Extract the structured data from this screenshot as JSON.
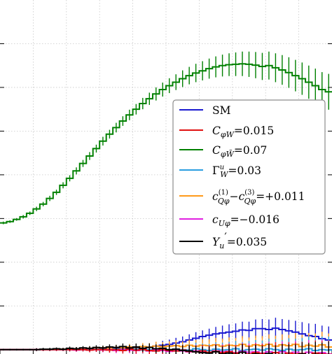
{
  "chart_data": {
    "type": "line",
    "step": true,
    "title": "",
    "xlabel": "",
    "ylabel": "",
    "xlim": [
      0,
      50
    ],
    "ylim": [
      0.9,
      9.0
    ],
    "x_grid": [
      0,
      5,
      10,
      15,
      20,
      25,
      30,
      35,
      40,
      45,
      50
    ],
    "y_grid": [
      1,
      2,
      3,
      4,
      5,
      6,
      7,
      8
    ],
    "grid": true,
    "legend_position": "center-right",
    "x": [
      0.5,
      1.5,
      2.5,
      3.5,
      4.5,
      5.5,
      6.5,
      7.5,
      8.5,
      9.5,
      10.5,
      11.5,
      12.5,
      13.5,
      14.5,
      15.5,
      16.5,
      17.5,
      18.5,
      19.5,
      20.5,
      21.5,
      22.5,
      23.5,
      24.5,
      25.5,
      26.5,
      27.5,
      28.5,
      29.5,
      30.5,
      31.5,
      32.5,
      33.5,
      34.5,
      35.5,
      36.5,
      37.5,
      38.5,
      39.5,
      40.5,
      41.5,
      42.5,
      43.5,
      44.5,
      45.5,
      46.5,
      47.5,
      48.5,
      49.5
    ],
    "series": [
      {
        "name": "SM",
        "color": "#1a1ad0",
        "values": [
          1.0,
          1.0,
          1.0,
          1.0,
          1.0,
          1.0,
          1.0,
          1.0,
          1.0,
          1.0,
          1.0,
          1.0,
          1.0,
          1.01,
          1.0,
          1.01,
          1.0,
          1.02,
          1.01,
          1.02,
          1.04,
          1.03,
          1.06,
          1.08,
          1.1,
          1.12,
          1.15,
          1.18,
          1.22,
          1.26,
          1.3,
          1.33,
          1.36,
          1.38,
          1.4,
          1.42,
          1.45,
          1.44,
          1.48,
          1.48,
          1.46,
          1.49,
          1.46,
          1.43,
          1.4,
          1.36,
          1.32,
          1.3,
          1.25,
          1.22
        ],
        "errors": [
          0.02,
          0.02,
          0.02,
          0.02,
          0.02,
          0.03,
          0.03,
          0.03,
          0.03,
          0.03,
          0.04,
          0.04,
          0.04,
          0.05,
          0.05,
          0.05,
          0.06,
          0.06,
          0.07,
          0.07,
          0.08,
          0.08,
          0.09,
          0.1,
          0.1,
          0.11,
          0.12,
          0.12,
          0.13,
          0.14,
          0.14,
          0.15,
          0.16,
          0.17,
          0.18,
          0.18,
          0.19,
          0.2,
          0.21,
          0.22,
          0.23,
          0.24,
          0.24,
          0.25,
          0.26,
          0.27,
          0.28,
          0.29,
          0.3,
          0.31
        ]
      },
      {
        "name": "C_{φW}=0.015",
        "color": "#e01010",
        "values": [
          1.0,
          1.0,
          1.0,
          1.0,
          1.0,
          1.0,
          1.0,
          1.0,
          1.0,
          1.0,
          1.0,
          1.0,
          1.0,
          0.99,
          1.0,
          1.0,
          0.99,
          1.0,
          0.98,
          1.01,
          0.99,
          1.0,
          0.98,
          0.97,
          1.0,
          0.98,
          0.97,
          0.99,
          0.96,
          0.95,
          0.97,
          0.94,
          0.96,
          0.93,
          0.95,
          0.92,
          0.94,
          0.9,
          0.93,
          0.91,
          0.9,
          0.93,
          0.89,
          0.92,
          0.9,
          0.91,
          0.88,
          0.92,
          0.9,
          0.89
        ],
        "errors": [
          0.02,
          0.02,
          0.02,
          0.02,
          0.02,
          0.03,
          0.03,
          0.03,
          0.03,
          0.03,
          0.04,
          0.04,
          0.04,
          0.05,
          0.05,
          0.05,
          0.06,
          0.06,
          0.07,
          0.07,
          0.08,
          0.08,
          0.09,
          0.1,
          0.1,
          0.11,
          0.12,
          0.12,
          0.13,
          0.14,
          0.14,
          0.15,
          0.16,
          0.17,
          0.18,
          0.18,
          0.19,
          0.2,
          0.21,
          0.22,
          0.23,
          0.24,
          0.24,
          0.25,
          0.26,
          0.27,
          0.28,
          0.29,
          0.3,
          0.31
        ]
      },
      {
        "name": "C_{φW̃}=0.07",
        "color": "#008000",
        "values": [
          3.9,
          3.93,
          3.98,
          4.04,
          4.12,
          4.22,
          4.33,
          4.46,
          4.6,
          4.76,
          4.92,
          5.09,
          5.26,
          5.43,
          5.6,
          5.77,
          5.93,
          6.08,
          6.23,
          6.37,
          6.5,
          6.63,
          6.74,
          6.85,
          6.95,
          7.04,
          7.12,
          7.2,
          7.27,
          7.33,
          7.38,
          7.43,
          7.47,
          7.5,
          7.52,
          7.53,
          7.54,
          7.53,
          7.51,
          7.48,
          7.5,
          7.45,
          7.4,
          7.34,
          7.27,
          7.2,
          7.12,
          7.04,
          6.95,
          6.9
        ],
        "errors": [
          0.03,
          0.03,
          0.03,
          0.04,
          0.04,
          0.05,
          0.05,
          0.06,
          0.06,
          0.07,
          0.07,
          0.08,
          0.08,
          0.09,
          0.09,
          0.1,
          0.1,
          0.11,
          0.11,
          0.12,
          0.12,
          0.13,
          0.14,
          0.15,
          0.16,
          0.17,
          0.18,
          0.19,
          0.2,
          0.21,
          0.22,
          0.23,
          0.24,
          0.25,
          0.26,
          0.27,
          0.28,
          0.29,
          0.3,
          0.31,
          0.32,
          0.33,
          0.34,
          0.35,
          0.36,
          0.37,
          0.38,
          0.39,
          0.4,
          0.41
        ]
      },
      {
        "name": "Γ_W^u=0.03",
        "color": "#2a9ee0",
        "values": [
          1.0,
          1.0,
          1.0,
          1.0,
          1.0,
          1.0,
          1.0,
          1.0,
          1.0,
          1.0,
          1.0,
          1.0,
          1.0,
          1.0,
          1.01,
          1.0,
          1.0,
          1.01,
          0.99,
          1.0,
          1.01,
          0.99,
          1.0,
          1.01,
          1.0,
          0.99,
          1.01,
          1.0,
          0.99,
          1.02,
          1.0,
          0.98,
          1.01,
          0.99,
          1.0,
          1.02,
          0.98,
          1.0,
          1.01,
          0.99,
          1.02,
          1.0,
          0.98,
          1.01,
          0.99,
          1.0,
          1.02,
          0.98,
          1.0,
          0.99
        ],
        "errors": [
          0.02,
          0.02,
          0.02,
          0.02,
          0.02,
          0.03,
          0.03,
          0.03,
          0.03,
          0.03,
          0.04,
          0.04,
          0.04,
          0.05,
          0.05,
          0.05,
          0.06,
          0.06,
          0.07,
          0.07,
          0.08,
          0.08,
          0.09,
          0.1,
          0.1,
          0.11,
          0.12,
          0.12,
          0.13,
          0.14,
          0.14,
          0.15,
          0.16,
          0.17,
          0.18,
          0.18,
          0.19,
          0.2,
          0.21,
          0.22,
          0.23,
          0.24,
          0.24,
          0.25,
          0.26,
          0.27,
          0.28,
          0.29,
          0.3,
          0.31
        ]
      },
      {
        "name": "c_{Qφ}^{(1)}−c_{Qφ}^{(3)}=+0.011",
        "color": "#ff9a1a",
        "values": [
          1.0,
          1.0,
          1.0,
          1.0,
          1.0,
          1.0,
          1.0,
          1.0,
          1.01,
          1.01,
          1.01,
          1.02,
          1.02,
          1.03,
          1.02,
          1.04,
          1.03,
          1.05,
          1.04,
          1.06,
          1.05,
          1.07,
          1.06,
          1.08,
          1.07,
          1.08,
          1.09,
          1.07,
          1.1,
          1.08,
          1.1,
          1.09,
          1.11,
          1.08,
          1.1,
          1.09,
          1.12,
          1.08,
          1.11,
          1.09,
          1.12,
          1.08,
          1.11,
          1.09,
          1.12,
          1.07,
          1.1,
          1.08,
          1.11,
          1.06
        ],
        "errors": [
          0.02,
          0.02,
          0.02,
          0.02,
          0.02,
          0.03,
          0.03,
          0.03,
          0.03,
          0.03,
          0.04,
          0.04,
          0.04,
          0.05,
          0.05,
          0.05,
          0.06,
          0.06,
          0.07,
          0.07,
          0.08,
          0.08,
          0.09,
          0.1,
          0.1,
          0.11,
          0.12,
          0.12,
          0.13,
          0.14,
          0.14,
          0.15,
          0.16,
          0.17,
          0.18,
          0.18,
          0.19,
          0.2,
          0.21,
          0.22,
          0.23,
          0.24,
          0.24,
          0.25,
          0.26,
          0.27,
          0.28,
          0.29,
          0.3,
          0.31
        ]
      },
      {
        "name": "c_{Uφ}=−0.016",
        "color": "#e020e0",
        "values": [
          1.0,
          1.0,
          1.0,
          1.0,
          1.0,
          1.0,
          1.0,
          1.0,
          1.0,
          1.0,
          1.0,
          0.99,
          1.0,
          0.99,
          1.0,
          0.99,
          1.0,
          0.98,
          1.0,
          0.99,
          0.98,
          1.0,
          0.97,
          0.99,
          0.98,
          0.96,
          0.98,
          0.97,
          0.95,
          0.97,
          0.96,
          0.94,
          0.97,
          0.95,
          0.96,
          0.93,
          0.96,
          0.94,
          0.95,
          0.92,
          0.95,
          0.93,
          0.95,
          0.92,
          0.94,
          0.91,
          0.94,
          0.92,
          0.93,
          0.9
        ],
        "errors": [
          0.02,
          0.02,
          0.02,
          0.02,
          0.02,
          0.03,
          0.03,
          0.03,
          0.03,
          0.03,
          0.04,
          0.04,
          0.04,
          0.05,
          0.05,
          0.05,
          0.06,
          0.06,
          0.07,
          0.07,
          0.08,
          0.08,
          0.09,
          0.1,
          0.1,
          0.11,
          0.12,
          0.12,
          0.13,
          0.14,
          0.14,
          0.15,
          0.16,
          0.17,
          0.18,
          0.18,
          0.19,
          0.2,
          0.21,
          0.22,
          0.23,
          0.24,
          0.24,
          0.25,
          0.26,
          0.27,
          0.28,
          0.29,
          0.3,
          0.31
        ]
      },
      {
        "name": "Y_u′=0.035",
        "color": "#000000",
        "values": [
          1.0,
          1.0,
          1.0,
          1.0,
          1.0,
          1.0,
          1.01,
          1.01,
          1.02,
          1.01,
          1.03,
          1.02,
          1.04,
          1.03,
          1.05,
          1.04,
          1.06,
          1.05,
          1.07,
          1.04,
          1.06,
          1.03,
          1.05,
          1.02,
          1.03,
          1.0,
          1.01,
          0.98,
          0.97,
          0.95,
          0.93,
          0.92,
          0.95,
          0.9,
          0.92,
          0.89,
          0.94,
          0.88,
          0.9,
          0.87,
          0.91,
          0.86,
          0.89,
          0.88,
          0.86,
          0.9,
          0.87,
          0.89,
          0.86,
          0.88
        ],
        "errors": [
          0.02,
          0.02,
          0.02,
          0.02,
          0.02,
          0.03,
          0.03,
          0.03,
          0.03,
          0.03,
          0.04,
          0.04,
          0.04,
          0.05,
          0.05,
          0.05,
          0.06,
          0.06,
          0.07,
          0.07,
          0.08,
          0.08,
          0.09,
          0.1,
          0.1,
          0.11,
          0.12,
          0.12,
          0.13,
          0.14,
          0.14,
          0.15,
          0.16,
          0.17,
          0.18,
          0.18,
          0.19,
          0.2,
          0.21,
          0.22,
          0.23,
          0.24,
          0.24,
          0.25,
          0.26,
          0.27,
          0.28,
          0.29,
          0.3,
          0.31
        ]
      }
    ]
  }
}
